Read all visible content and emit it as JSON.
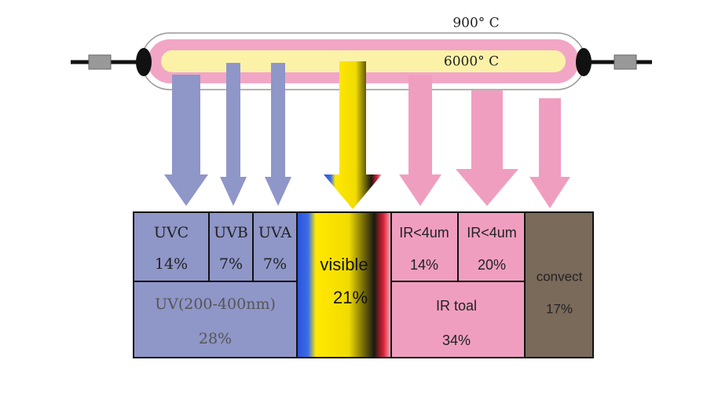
{
  "lamp": {
    "outer_temp": "900° C",
    "inner_temp": "6000° C"
  },
  "boxes": {
    "uvc": {
      "label": "UVC",
      "value": "14%"
    },
    "uvb": {
      "label": "UVB",
      "value": "7%"
    },
    "uva": {
      "label": "UVA",
      "value": "7%"
    },
    "uv": {
      "label": "UV(200-400nm)",
      "value": "28%"
    },
    "visible": {
      "label": "visible",
      "value": "21%"
    },
    "ir1": {
      "label": "IR<4um",
      "value": "14%"
    },
    "ir2": {
      "label": "IR<4um",
      "value": "20%"
    },
    "ir_total": {
      "label": "IR toal",
      "value": "34%"
    },
    "convect": {
      "label": "convect",
      "value": "17%"
    }
  }
}
